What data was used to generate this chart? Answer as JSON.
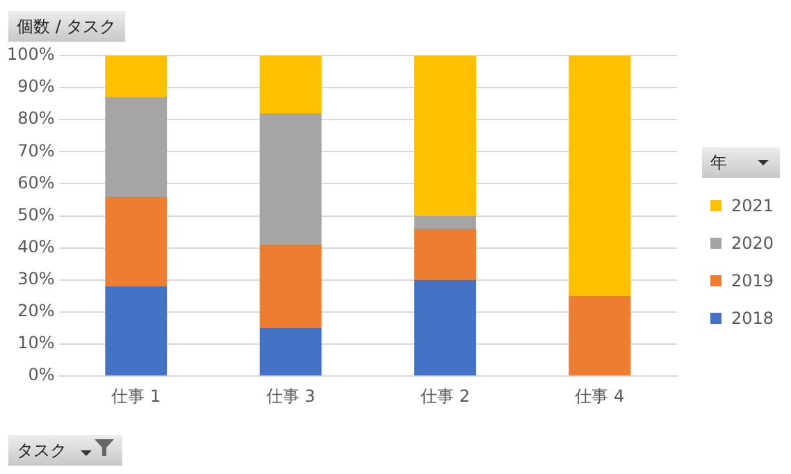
{
  "chart_data": {
    "type": "bar",
    "title": "個数 / タスク",
    "xlabel": "タスク",
    "legend_title": "年",
    "stacked": true,
    "categories": [
      "仕事 1",
      "仕事 3",
      "仕事 2",
      "仕事 4"
    ],
    "series": [
      {
        "name": "2018",
        "color": "#4472c4",
        "values": [
          28,
          15,
          30,
          0
        ]
      },
      {
        "name": "2019",
        "color": "#ed7d31",
        "values": [
          28,
          26,
          16,
          25
        ]
      },
      {
        "name": "2020",
        "color": "#a5a5a5",
        "values": [
          31,
          41,
          4,
          0
        ]
      },
      {
        "name": "2021",
        "color": "#ffc000",
        "values": [
          13,
          18,
          50,
          75
        ]
      }
    ],
    "ylim": [
      0,
      100
    ],
    "yticks": [
      {
        "value": 0,
        "label": "0%"
      },
      {
        "value": 10,
        "label": "10%"
      },
      {
        "value": 20,
        "label": "20%"
      },
      {
        "value": 30,
        "label": "30%"
      },
      {
        "value": 40,
        "label": "40%"
      },
      {
        "value": 50,
        "label": "50%"
      },
      {
        "value": 60,
        "label": "60%"
      },
      {
        "value": 70,
        "label": "70%"
      },
      {
        "value": 80,
        "label": "80%"
      },
      {
        "value": 90,
        "label": "90%"
      },
      {
        "value": 100,
        "label": "100%"
      }
    ],
    "grid": "y",
    "legend": "right"
  }
}
